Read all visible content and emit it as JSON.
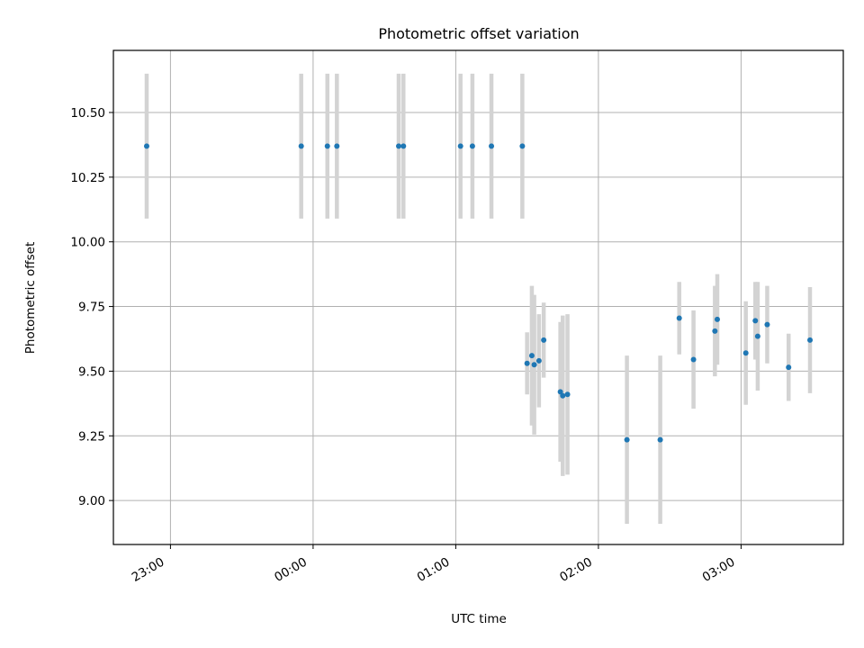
{
  "chart_data": {
    "type": "scatter",
    "title": "Photometric offset variation",
    "xlabel": "UTC time",
    "ylabel": "Photometric offset",
    "x_unit": "UTC time (hours, hh:mm after 22:00 → times past midnight continue above 24:00)",
    "xlim": [
      "22:36",
      "03:43"
    ],
    "ylim": [
      8.83,
      10.74
    ],
    "grid": true,
    "x_ticks": [
      "23:00",
      "00:00",
      "01:00",
      "02:00",
      "03:00"
    ],
    "y_ticks": [
      "9.00",
      "9.25",
      "9.50",
      "9.75",
      "10.00",
      "10.25",
      "10.50"
    ],
    "colors": {
      "points": "#1f77b4",
      "error_bars": "#d3d3d3",
      "grid": "#b0b0b0"
    },
    "points": [
      {
        "x": "22:50",
        "y": 10.37,
        "yerr": 0.28
      },
      {
        "x": "23:55",
        "y": 10.37,
        "yerr": 0.28
      },
      {
        "x": "00:06",
        "y": 10.37,
        "yerr": 0.28
      },
      {
        "x": "00:10",
        "y": 10.37,
        "yerr": 0.28
      },
      {
        "x": "00:36",
        "y": 10.37,
        "yerr": 0.28
      },
      {
        "x": "00:38",
        "y": 10.37,
        "yerr": 0.28
      },
      {
        "x": "01:02",
        "y": 10.37,
        "yerr": 0.28
      },
      {
        "x": "01:07",
        "y": 10.37,
        "yerr": 0.28
      },
      {
        "x": "01:15",
        "y": 10.37,
        "yerr": 0.28
      },
      {
        "x": "01:28",
        "y": 10.37,
        "yerr": 0.28
      },
      {
        "x": "01:30",
        "y": 9.53,
        "yerr": 0.12
      },
      {
        "x": "01:32",
        "y": 9.56,
        "yerr": 0.27
      },
      {
        "x": "01:33",
        "y": 9.525,
        "yerr": 0.27
      },
      {
        "x": "01:35",
        "y": 9.54,
        "yerr": 0.18
      },
      {
        "x": "01:37",
        "y": 9.62,
        "yerr": 0.145
      },
      {
        "x": "01:44",
        "y": 9.42,
        "yerr": 0.27
      },
      {
        "x": "01:45",
        "y": 9.405,
        "yerr": 0.31
      },
      {
        "x": "01:47",
        "y": 9.41,
        "yerr": 0.31
      },
      {
        "x": "02:12",
        "y": 9.235,
        "yerr": 0.325
      },
      {
        "x": "02:26",
        "y": 9.235,
        "yerr": 0.325
      },
      {
        "x": "02:34",
        "y": 9.705,
        "yerr": 0.14
      },
      {
        "x": "02:40",
        "y": 9.545,
        "yerr": 0.19
      },
      {
        "x": "02:49",
        "y": 9.655,
        "yerr": 0.175
      },
      {
        "x": "02:50",
        "y": 9.7,
        "yerr": 0.175
      },
      {
        "x": "03:02",
        "y": 9.57,
        "yerr": 0.2
      },
      {
        "x": "03:06",
        "y": 9.695,
        "yerr": 0.15
      },
      {
        "x": "03:07",
        "y": 9.635,
        "yerr": 0.21
      },
      {
        "x": "03:11",
        "y": 9.68,
        "yerr": 0.15
      },
      {
        "x": "03:20",
        "y": 9.515,
        "yerr": 0.13
      },
      {
        "x": "03:29",
        "y": 9.62,
        "yerr": 0.205
      }
    ]
  }
}
